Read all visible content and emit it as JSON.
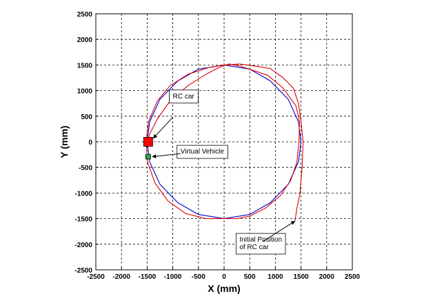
{
  "chart_data": {
    "type": "line",
    "title": "",
    "xlabel": "X (mm)",
    "ylabel": "Y (mm)",
    "xlim": [
      -2500,
      2500
    ],
    "ylim": [
      -2500,
      2500
    ],
    "xticks": [
      -2500,
      -2000,
      -1500,
      -1000,
      -500,
      0,
      500,
      1000,
      1500,
      2000,
      2500
    ],
    "yticks": [
      -2500,
      -2000,
      -1500,
      -1000,
      -500,
      0,
      500,
      1000,
      1500,
      2000,
      2500
    ],
    "grid": true,
    "series": [
      {
        "color": "#0000cc",
        "x": [
          0,
          500,
          900,
          1250,
          1450,
          1500,
          1450,
          1250,
          900,
          500,
          0,
          -500,
          -900,
          -1250,
          -1450,
          -1500,
          -1450,
          -1250,
          -900,
          -500,
          0
        ],
        "y": [
          1500,
          1420,
          1190,
          830,
          390,
          0,
          -390,
          -830,
          -1190,
          -1420,
          -1500,
          -1420,
          -1190,
          -830,
          -390,
          0,
          390,
          830,
          1190,
          1420,
          1500
        ]
      },
      {
        "color": "#dd0000",
        "x": [
          1380,
          1420,
          1480,
          1500,
          1520,
          1540,
          1500,
          1450,
          1350,
          1150,
          900,
          600,
          300,
          0,
          -300,
          -700,
          -1050,
          -1300,
          -1470,
          -1520,
          -1490,
          -1350,
          -1100,
          -750,
          -350,
          0,
          250,
          500,
          800,
          1100,
          1300,
          1420,
          1460,
          1470,
          1400,
          1150,
          850,
          550,
          300,
          100,
          -100,
          -350,
          -700,
          -1050,
          -1300,
          -1450,
          -1490
        ],
        "y": [
          -1550,
          -1300,
          -1000,
          -750,
          -500,
          0,
          400,
          750,
          1050,
          1250,
          1430,
          1480,
          1520,
          1500,
          1450,
          1320,
          1100,
          800,
          400,
          0,
          -400,
          -800,
          -1150,
          -1400,
          -1500,
          -1500,
          -1500,
          -1450,
          -1300,
          -1050,
          -750,
          -400,
          0,
          400,
          700,
          1050,
          1300,
          1400,
          1480,
          1520,
          1450,
          1320,
          1100,
          800,
          450,
          150,
          0
        ]
      }
    ],
    "markers": [
      {
        "name": "rc-car-marker",
        "x": -1480,
        "y": 0,
        "color": "#ff0000"
      },
      {
        "name": "virtual-vehicle-marker",
        "x": -1480,
        "y": -290,
        "color": "#22aa44"
      }
    ],
    "annotations": [
      {
        "name": "annotation-rc-car",
        "text": [
          "RC car"
        ],
        "box": true,
        "text_x": -1000,
        "text_y": 850,
        "arrow_from_x": -1000,
        "arrow_from_y": 480,
        "arrow_to_x": -1380,
        "arrow_to_y": 70
      },
      {
        "name": "annotation-virtual-vehicle",
        "text": [
          "Virtual Vehicle"
        ],
        "box": true,
        "text_x": -850,
        "text_y": -230,
        "arrow_from_x": -850,
        "arrow_from_y": -230,
        "arrow_to_x": -1400,
        "arrow_to_y": -290
      },
      {
        "name": "annotation-initial-position",
        "text": [
          "Initial Position",
          "of RC car"
        ],
        "box": true,
        "text_x": 300,
        "text_y": -1950,
        "arrow_from_x": 750,
        "arrow_from_y": -1950,
        "arrow_to_x": 1380,
        "arrow_to_y": -1550
      }
    ]
  }
}
